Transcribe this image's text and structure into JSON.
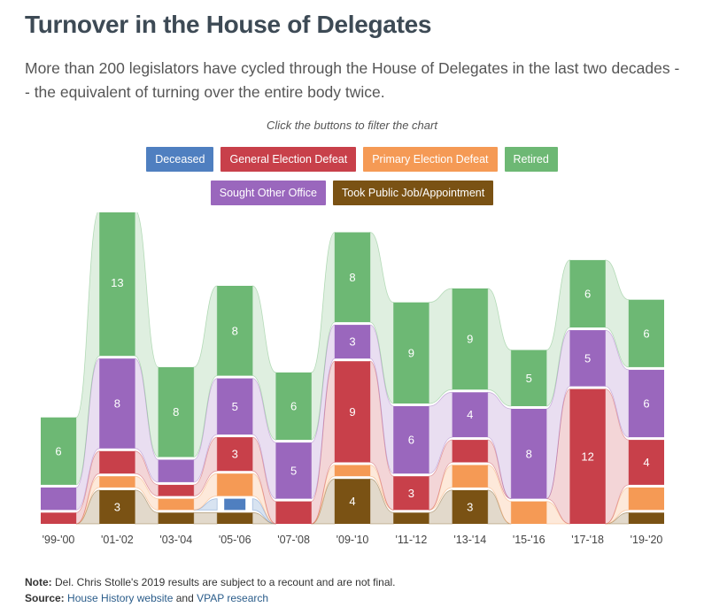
{
  "header": {
    "title": "Turnover in the House of Delegates",
    "subtitle": "More than 200 legislators have cycled through the House of Delegates in the last two decades -- the equivalent of turning over the entire body twice.",
    "instruction": "Click the buttons to filter the chart"
  },
  "filters": [
    {
      "label": "Deceased",
      "color": "#4f7fc0"
    },
    {
      "label": "General Election Defeat",
      "color": "#c8404a"
    },
    {
      "label": "Primary Election Defeat",
      "color": "#f59a55"
    },
    {
      "label": "Retired",
      "color": "#6db874"
    },
    {
      "label": "Sought Other Office",
      "color": "#9a67bd"
    },
    {
      "label": "Took Public Job/Appointment",
      "color": "#7a5214"
    }
  ],
  "chart_data": {
    "type": "bar",
    "stacked": true,
    "categories": [
      "'99-'00",
      "'01-'02",
      "'03-'04",
      "'05-'06",
      "'07-'08",
      "'09-'10",
      "'11-'12",
      "'13-'14",
      "'15-'16",
      "'17-'18",
      "'19-'20"
    ],
    "series": [
      {
        "name": "Took Public Job/Appointment",
        "color": "#7a5214",
        "values": [
          0,
          3,
          1,
          1,
          0,
          4,
          1,
          3,
          0,
          0,
          1
        ]
      },
      {
        "name": "Deceased",
        "color": "#4f7fc0",
        "values": [
          0,
          0,
          0,
          1,
          0,
          0,
          0,
          0,
          0,
          0,
          0
        ]
      },
      {
        "name": "Primary Election Defeat",
        "color": "#f59a55",
        "values": [
          0,
          1,
          1,
          2,
          0,
          1,
          0,
          2,
          2,
          0,
          2
        ]
      },
      {
        "name": "General Election Defeat",
        "color": "#c8404a",
        "values": [
          1,
          2,
          1,
          3,
          2,
          9,
          3,
          2,
          0,
          12,
          4
        ]
      },
      {
        "name": "Sought Other Office",
        "color": "#9a67bd",
        "values": [
          2,
          8,
          2,
          5,
          5,
          3,
          6,
          4,
          8,
          5,
          6
        ]
      },
      {
        "name": "Retired",
        "color": "#6db874",
        "values": [
          6,
          13,
          8,
          8,
          6,
          8,
          9,
          9,
          5,
          6,
          6
        ]
      }
    ]
  },
  "footer": {
    "note_label": "Note:",
    "note_text": " Del. Chris Stolle's 2019 results are subject to a recount and are not final.",
    "source_label": "Source:",
    "source_link1": "House History website",
    "source_mid": " and ",
    "source_link2": "VPAP research"
  }
}
